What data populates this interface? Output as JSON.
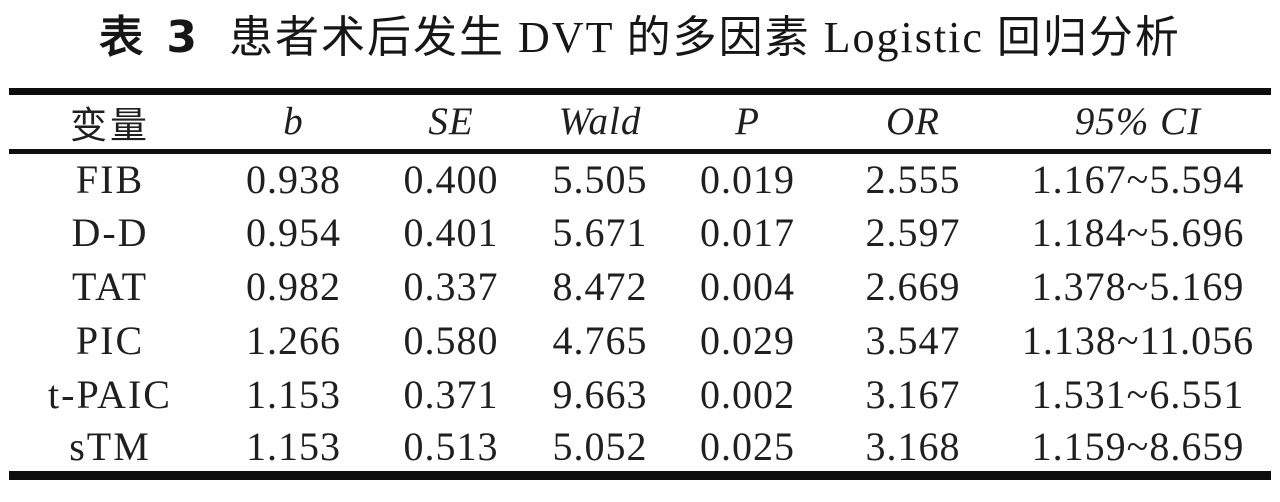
{
  "page": {
    "background": "#fefefe",
    "text_color": "#1b1b1b",
    "rule_color": "#0d0d0d"
  },
  "title": {
    "prefix": "表 3",
    "text": "患者术后发生 DVT 的多因素 Logistic 回归分析"
  },
  "table": {
    "columns": [
      "变量",
      "b",
      "SE",
      "Wald",
      "P",
      "OR",
      "95% CI"
    ],
    "rows": [
      [
        "FIB",
        "0.938",
        "0.400",
        "5.505",
        "0.019",
        "2.555",
        "1.167~5.594"
      ],
      [
        "D-D",
        "0.954",
        "0.401",
        "5.671",
        "0.017",
        "2.597",
        "1.184~5.696"
      ],
      [
        "TAT",
        "0.982",
        "0.337",
        "8.472",
        "0.004",
        "2.669",
        "1.378~5.169"
      ],
      [
        "PIC",
        "1.266",
        "0.580",
        "4.765",
        "0.029",
        "3.547",
        "1.138~11.056"
      ],
      [
        "t-PAIC",
        "1.153",
        "0.371",
        "9.663",
        "0.002",
        "3.167",
        "1.531~6.551"
      ],
      [
        "sTM",
        "1.153",
        "0.513",
        "5.052",
        "0.025",
        "3.168",
        "1.159~8.659"
      ]
    ]
  }
}
